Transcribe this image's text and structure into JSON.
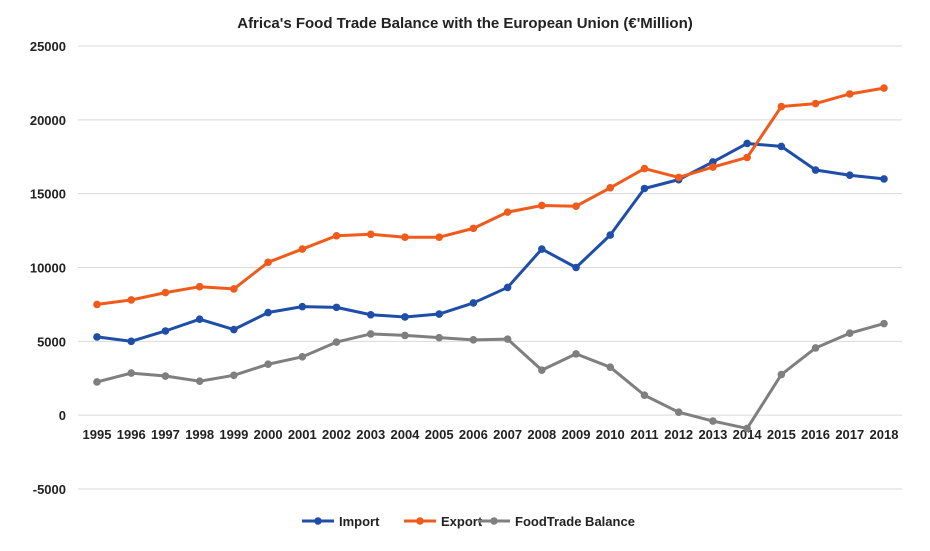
{
  "chart_data": {
    "type": "line",
    "title": "Africa's Food Trade Balance with the European Union (€'Million)",
    "xlabel": "",
    "ylabel": "",
    "ylim": [
      -5000,
      25000
    ],
    "yticks": [
      25000,
      20000,
      15000,
      10000,
      5000,
      0,
      -5000
    ],
    "ytick_labels": [
      "25000",
      "20000",
      "15000",
      "10000",
      "5000",
      "0",
      "-5000"
    ],
    "grid": true,
    "legend_position": "bottom",
    "categories": [
      "1995",
      "1996",
      "1997",
      "1998",
      "1999",
      "2000",
      "2001",
      "2002",
      "2003",
      "2004",
      "2005",
      "2006",
      "2007",
      "2008",
      "2009",
      "2010",
      "2011",
      "2012",
      "2013",
      "2014",
      "2015",
      "2016",
      "2017",
      "2018"
    ],
    "series": [
      {
        "name": "Import",
        "color": "#1f4ea8",
        "values": [
          5300,
          5000,
          5700,
          6500,
          5800,
          6950,
          7350,
          7300,
          6800,
          6650,
          6850,
          7600,
          8650,
          11250,
          10000,
          12200,
          15350,
          15950,
          17150,
          18400,
          18200,
          16600,
          16250,
          16000
        ]
      },
      {
        "name": "Export",
        "color": "#f05a1a",
        "values": [
          7500,
          7800,
          8300,
          8700,
          8550,
          10350,
          11250,
          12150,
          12250,
          12050,
          12050,
          12650,
          13750,
          14200,
          14150,
          15400,
          16700,
          16100,
          16800,
          17450,
          20900,
          21100,
          21750,
          22150
        ]
      },
      {
        "name": "FoodTrade Balance",
        "color": "#7f7f7f",
        "values": [
          2250,
          2850,
          2650,
          2300,
          2700,
          3450,
          3950,
          4950,
          5500,
          5400,
          5250,
          5100,
          5150,
          3050,
          4150,
          3250,
          1350,
          200,
          -400,
          -900,
          2750,
          4550,
          5550,
          6200
        ]
      }
    ]
  }
}
